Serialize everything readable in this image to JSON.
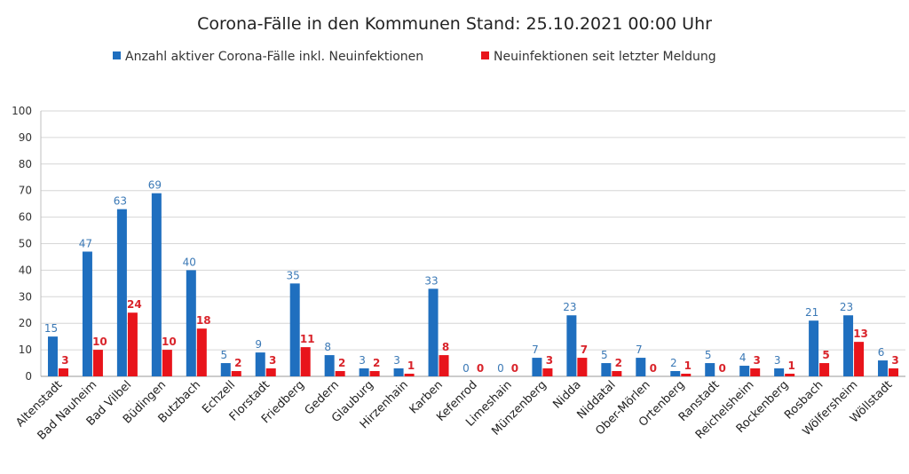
{
  "chart_data": {
    "type": "bar",
    "title": "Corona-Fälle in den Kommunen Stand: 25.10.2021 00:00 Uhr",
    "ylim": [
      0,
      100
    ],
    "yticks": [
      0,
      10,
      20,
      30,
      40,
      50,
      60,
      70,
      80,
      90,
      100
    ],
    "grid": true,
    "legend_position": "top",
    "categories": [
      "Altenstadt",
      "Bad Nauheim",
      "Bad Vilbel",
      "Büdingen",
      "Butzbach",
      "Echzell",
      "Florstadt",
      "Friedberg",
      "Gedern",
      "Glauburg",
      "Hirzenhain",
      "Karben",
      "Kefenrod",
      "Limeshain",
      "Münzenberg",
      "Nidda",
      "Niddatal",
      "Ober-Mörlen",
      "Ortenberg",
      "Ranstadt",
      "Reichelsheim",
      "Rockenberg",
      "Rosbach",
      "Wölfersheim",
      "Wöllstadt"
    ],
    "series": [
      {
        "name": "Anzahl aktiver Corona-Fälle inkl. Neuinfektionen",
        "color": "#1f6fbf",
        "label_color": "#3b79b6",
        "values": [
          15,
          47,
          63,
          69,
          40,
          5,
          9,
          35,
          8,
          3,
          3,
          33,
          0,
          0,
          7,
          23,
          5,
          7,
          2,
          5,
          4,
          3,
          21,
          23,
          6
        ]
      },
      {
        "name": "Neuinfektionen seit letzter Meldung",
        "color": "#e8141b",
        "label_color": "#d9242b",
        "values": [
          3,
          10,
          24,
          10,
          18,
          2,
          3,
          11,
          2,
          2,
          1,
          8,
          0,
          0,
          3,
          7,
          2,
          0,
          1,
          0,
          3,
          1,
          5,
          13,
          3
        ]
      }
    ]
  }
}
